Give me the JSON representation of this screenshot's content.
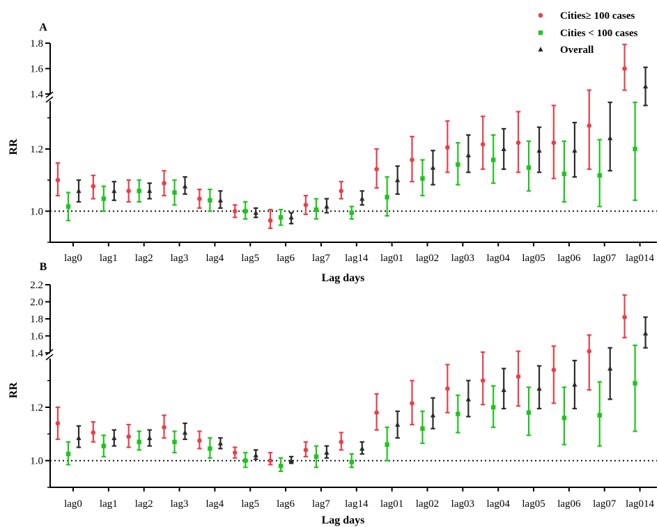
{
  "legend": {
    "items": [
      {
        "label": "Cities≥ 100 cases",
        "marker": "circle",
        "color": "#e8404a"
      },
      {
        "label": "Cities < 100 cases",
        "marker": "square",
        "color": "#1ec51e"
      },
      {
        "label": "Overall",
        "marker": "triangle",
        "color": "#2b2b2b"
      }
    ],
    "position": "top-right"
  },
  "chart_data": [
    {
      "panel": "A",
      "type": "scatter",
      "error_bars": true,
      "xlabel": "Lag days",
      "ylabel": "RR",
      "broken_axis": true,
      "reference_line": 1.0,
      "categories": [
        "lag0",
        "lag1",
        "lag2",
        "lag3",
        "lag4",
        "lag5",
        "lag6",
        "lag7",
        "lag14",
        "lag01",
        "lag02",
        "lag03",
        "lag04",
        "lag05",
        "lag06",
        "lag07",
        "lag014"
      ],
      "lower_segment": {
        "ylim": [
          0.9,
          1.35
        ],
        "ticks": [
          "1.0",
          "1.2"
        ],
        "tick_values": [
          1.0,
          1.2
        ]
      },
      "upper_segment": {
        "ylim": [
          1.4,
          1.8
        ],
        "ticks": [
          "1.4",
          "1.6",
          "1.8"
        ],
        "tick_values": [
          1.4,
          1.6,
          1.8
        ]
      },
      "series": [
        {
          "name": "Cities≥ 100 cases",
          "values": [
            1.1,
            1.08,
            1.065,
            1.09,
            1.04,
            1.0,
            0.97,
            1.02,
            1.065,
            1.135,
            1.165,
            1.205,
            1.215,
            1.22,
            1.22,
            1.275,
            1.6
          ],
          "lower": [
            1.05,
            1.04,
            1.03,
            1.05,
            1.01,
            0.98,
            0.945,
            0.99,
            1.04,
            1.075,
            1.095,
            1.125,
            1.135,
            1.125,
            1.105,
            1.135,
            1.43
          ],
          "upper": [
            1.155,
            1.115,
            1.1,
            1.13,
            1.07,
            1.02,
            1.005,
            1.05,
            1.095,
            1.2,
            1.24,
            1.29,
            1.305,
            1.32,
            1.34,
            1.43,
            1.79
          ]
        },
        {
          "name": "Cities < 100 cases",
          "values": [
            1.015,
            1.04,
            1.065,
            1.06,
            1.035,
            1.0,
            0.98,
            1.005,
            0.995,
            1.045,
            1.105,
            1.15,
            1.165,
            1.14,
            1.12,
            1.115,
            1.2
          ],
          "lower": [
            0.97,
            1.0,
            1.03,
            1.02,
            1.0,
            0.975,
            0.955,
            0.975,
            0.975,
            0.985,
            1.05,
            1.085,
            1.09,
            1.065,
            1.03,
            1.015,
            1.035
          ],
          "upper": [
            1.06,
            1.08,
            1.1,
            1.1,
            1.07,
            1.03,
            1.005,
            1.04,
            1.015,
            1.11,
            1.165,
            1.22,
            1.245,
            1.225,
            1.225,
            1.23,
            1.385
          ]
        },
        {
          "name": "Overall",
          "values": [
            1.065,
            1.065,
            1.065,
            1.08,
            1.035,
            0.995,
            0.98,
            1.015,
            1.04,
            1.1,
            1.14,
            1.18,
            1.2,
            1.195,
            1.195,
            1.235,
            1.46
          ],
          "lower": [
            1.03,
            1.035,
            1.04,
            1.055,
            1.01,
            0.98,
            0.96,
            0.995,
            1.02,
            1.055,
            1.085,
            1.125,
            1.135,
            1.125,
            1.11,
            1.13,
            1.34
          ],
          "upper": [
            1.1,
            1.095,
            1.09,
            1.11,
            1.065,
            1.01,
            0.995,
            1.04,
            1.065,
            1.145,
            1.195,
            1.245,
            1.265,
            1.27,
            1.285,
            1.35,
            1.61
          ]
        }
      ]
    },
    {
      "panel": "B",
      "type": "scatter",
      "error_bars": true,
      "xlabel": "Lag days",
      "ylabel": "RR",
      "broken_axis": true,
      "reference_line": 1.0,
      "categories": [
        "lag0",
        "lag1",
        "lag2",
        "lag3",
        "lag4",
        "lag5",
        "lag6",
        "lag7",
        "lag14",
        "lag01",
        "lag02",
        "lag03",
        "lag04",
        "lag05",
        "lag06",
        "lag07",
        "lag014"
      ],
      "lower_segment": {
        "ylim": [
          0.9,
          1.38
        ],
        "ticks": [
          "1.0",
          "1.2"
        ],
        "tick_values": [
          1.0,
          1.2
        ]
      },
      "upper_segment": {
        "ylim": [
          1.4,
          2.2
        ],
        "ticks": [
          "1.4",
          "1.6",
          "1.8",
          "2.0",
          "2.2"
        ],
        "tick_values": [
          1.4,
          1.6,
          1.8,
          2.0,
          2.2
        ]
      },
      "series": [
        {
          "name": "Cities≥ 100 cases",
          "values": [
            1.14,
            1.105,
            1.09,
            1.125,
            1.075,
            1.03,
            1.0,
            1.04,
            1.07,
            1.18,
            1.215,
            1.27,
            1.3,
            1.315,
            1.34,
            1.42,
            1.82
          ],
          "lower": [
            1.08,
            1.07,
            1.05,
            1.085,
            1.045,
            1.01,
            0.985,
            1.015,
            1.04,
            1.115,
            1.135,
            1.18,
            1.21,
            1.205,
            1.215,
            1.265,
            1.58
          ],
          "upper": [
            1.2,
            1.145,
            1.135,
            1.17,
            1.11,
            1.05,
            1.03,
            1.07,
            1.105,
            1.25,
            1.3,
            1.36,
            1.41,
            1.42,
            1.48,
            1.61,
            2.08
          ]
        },
        {
          "name": "Cities < 100 cases",
          "values": [
            1.025,
            1.055,
            1.07,
            1.07,
            1.045,
            1.0,
            0.98,
            1.015,
            0.995,
            1.06,
            1.12,
            1.175,
            1.2,
            1.18,
            1.16,
            1.17,
            1.29
          ],
          "lower": [
            0.985,
            1.015,
            1.04,
            1.03,
            1.01,
            0.975,
            0.96,
            0.975,
            0.975,
            1.0,
            1.065,
            1.105,
            1.125,
            1.095,
            1.06,
            1.055,
            1.11
          ],
          "upper": [
            1.07,
            1.095,
            1.11,
            1.11,
            1.085,
            1.03,
            1.01,
            1.055,
            1.025,
            1.125,
            1.185,
            1.245,
            1.28,
            1.275,
            1.275,
            1.295,
            1.49
          ]
        },
        {
          "name": "Overall",
          "values": [
            1.085,
            1.085,
            1.085,
            1.105,
            1.065,
            1.02,
            1.0,
            1.03,
            1.045,
            1.135,
            1.17,
            1.23,
            1.265,
            1.27,
            1.285,
            1.345,
            1.63
          ],
          "lower": [
            1.05,
            1.055,
            1.055,
            1.08,
            1.045,
            1.005,
            0.99,
            1.01,
            1.025,
            1.085,
            1.12,
            1.165,
            1.195,
            1.195,
            1.195,
            1.23,
            1.46
          ],
          "upper": [
            1.13,
            1.115,
            1.115,
            1.14,
            1.085,
            1.04,
            1.015,
            1.055,
            1.07,
            1.185,
            1.235,
            1.3,
            1.345,
            1.355,
            1.375,
            1.46,
            1.82
          ]
        }
      ]
    }
  ]
}
